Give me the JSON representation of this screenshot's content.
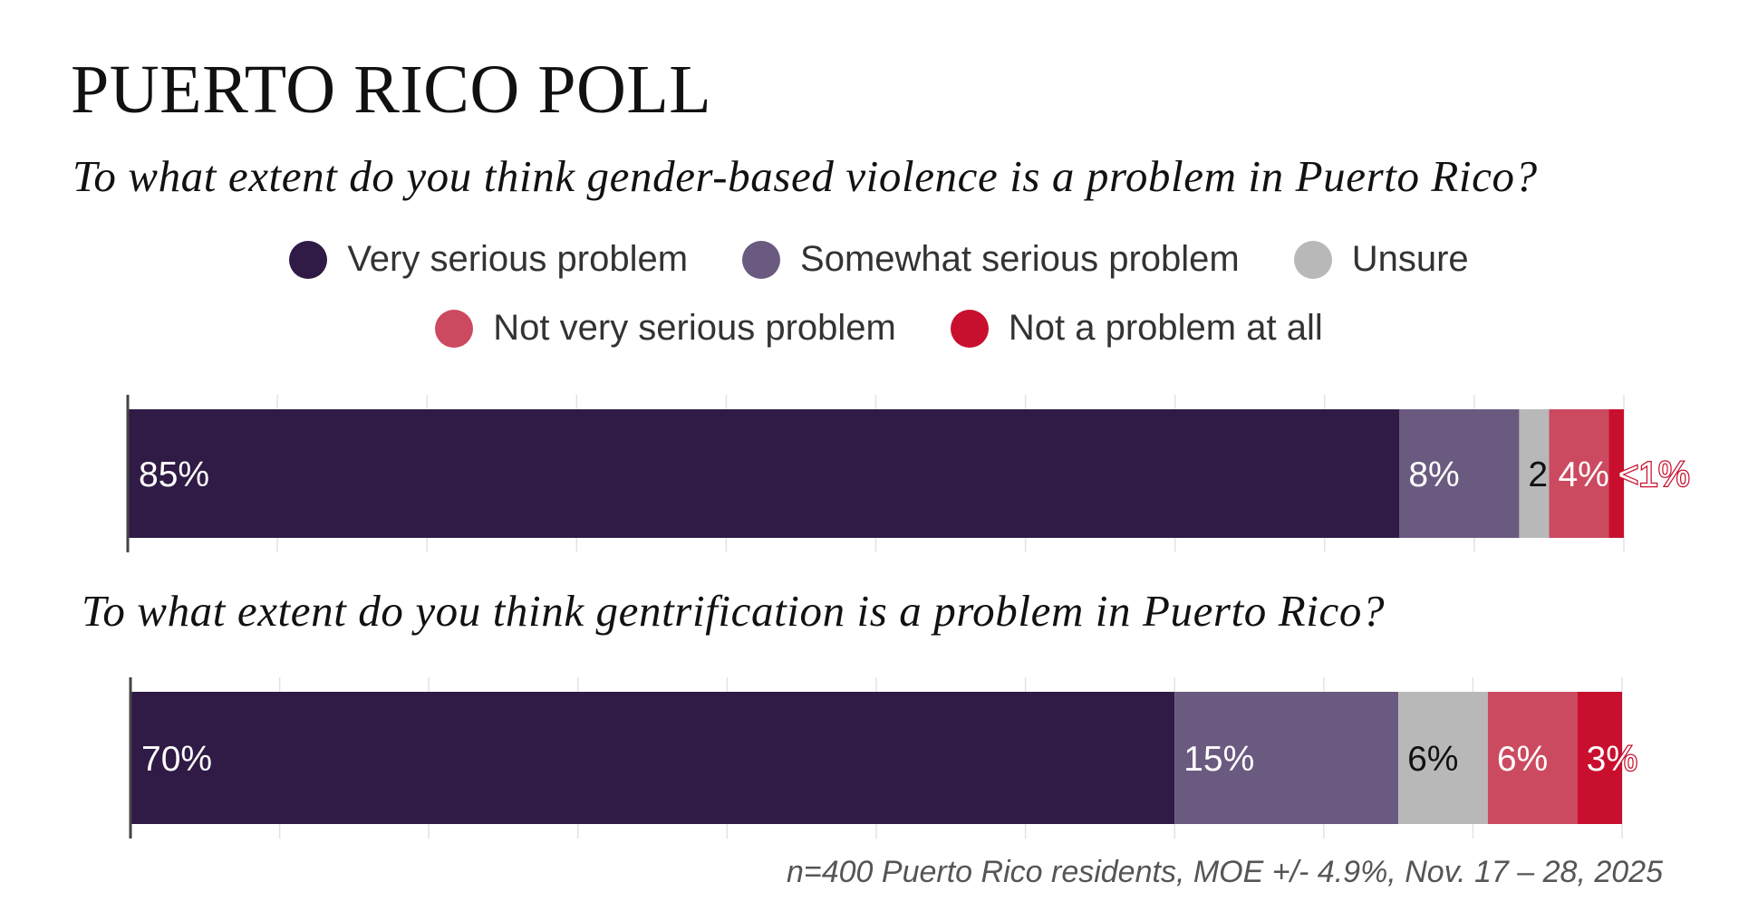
{
  "title": "PUERTO RICO POLL",
  "footnote": "n=400 Puerto Rico residents, MOE +/- 4.9%, Nov. 17 – 28, 2025",
  "legend": [
    {
      "label": "Very serious problem",
      "color": "#2f1b45"
    },
    {
      "label": "Somewhat serious problem",
      "color": "#6a5a80"
    },
    {
      "label": "Unsure",
      "color": "#b8b8b8"
    },
    {
      "label": "Not very serious problem",
      "color": "#cc4a60"
    },
    {
      "label": "Not a problem at all",
      "color": "#c8102e"
    }
  ],
  "chart_data": [
    {
      "type": "bar",
      "orientation": "horizontal-stacked",
      "title": "To what extent do you think gender-based violence is a problem in Puerto Rico?",
      "categories": [
        "Very serious problem",
        "Somewhat serious problem",
        "Unsure",
        "Not very serious problem",
        "Not a problem at all"
      ],
      "values": [
        85,
        8,
        2,
        4,
        1
      ],
      "labels": [
        "85%",
        "8%",
        "2%",
        "4%",
        "<1%"
      ],
      "xlim": [
        0,
        100
      ],
      "grid": true
    },
    {
      "type": "bar",
      "orientation": "horizontal-stacked",
      "title": "To what extent do you think gentrification is a problem in Puerto Rico?",
      "categories": [
        "Very serious problem",
        "Somewhat serious problem",
        "Unsure",
        "Not very serious problem",
        "Not a problem at all"
      ],
      "values": [
        70,
        15,
        6,
        6,
        3
      ],
      "labels": [
        "70%",
        "15%",
        "6%",
        "6%",
        "3%"
      ],
      "xlim": [
        0,
        100
      ],
      "grid": true
    }
  ]
}
